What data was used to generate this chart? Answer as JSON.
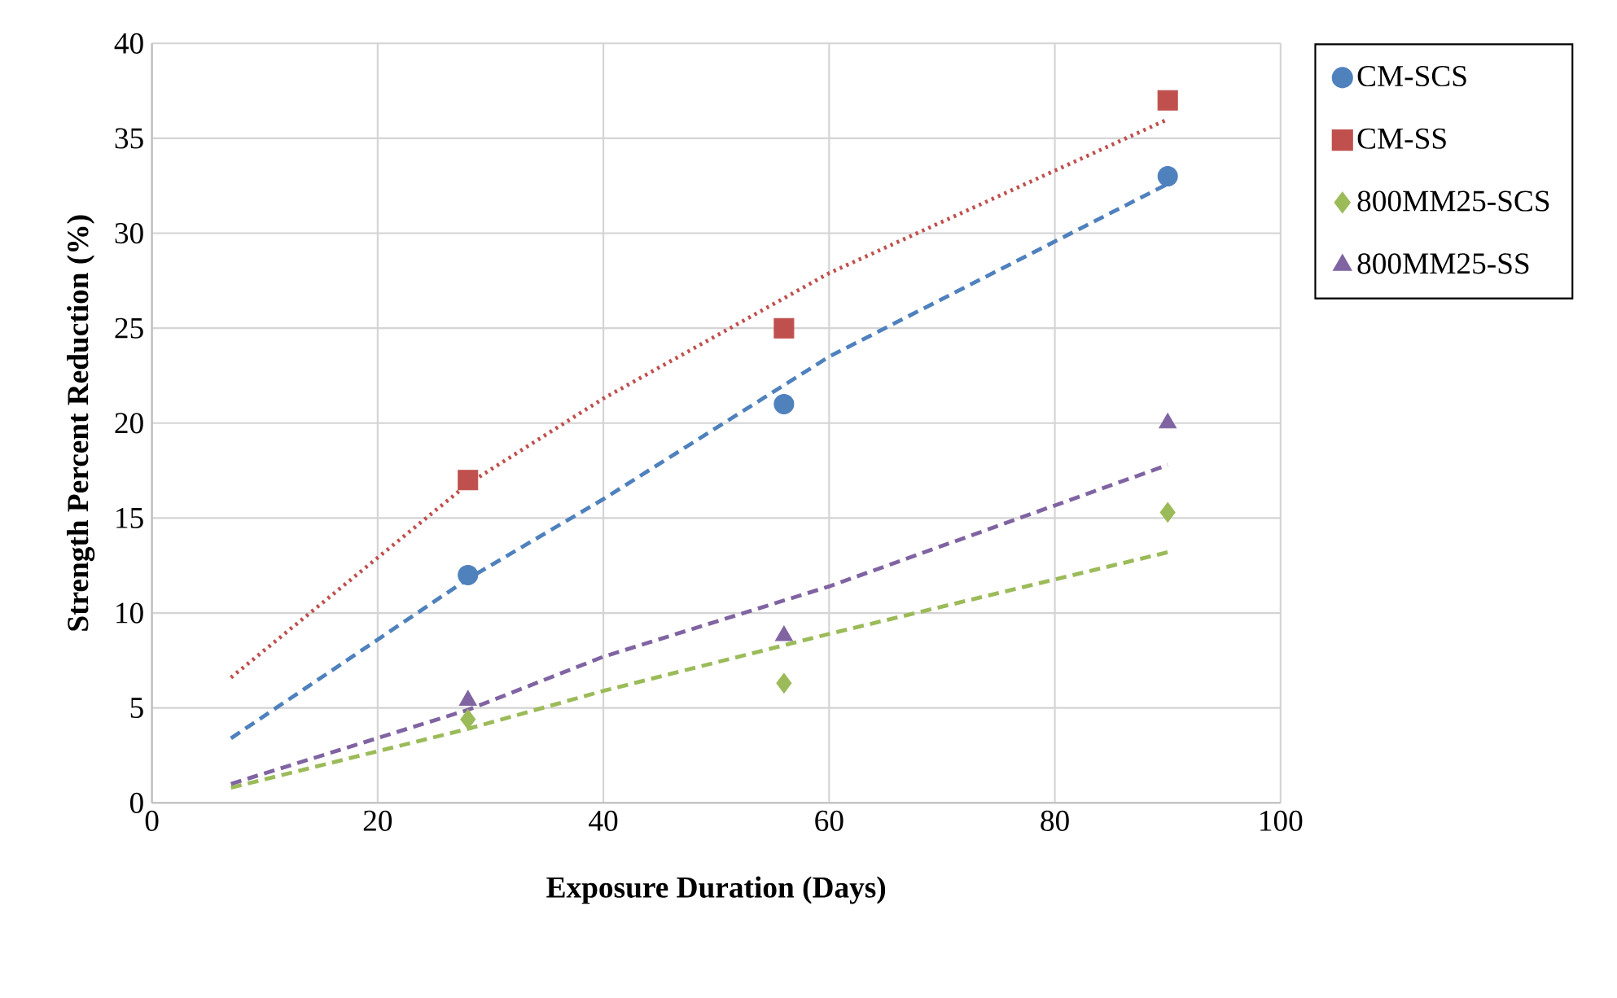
{
  "chart_data": {
    "type": "scatter",
    "xlabel": "Exposure Duration (Days)",
    "ylabel": "Strength Percent Reduction (%)",
    "xlim": [
      0,
      100
    ],
    "xticks": [
      0,
      20,
      40,
      60,
      80,
      100
    ],
    "ylim": [
      0,
      40
    ],
    "yticks": [
      0,
      5,
      10,
      15,
      20,
      25,
      30,
      35,
      40
    ],
    "grid": true,
    "legend": "right",
    "series": [
      {
        "name": "CM-SCS",
        "color": "#4f81bd",
        "marker": "circle",
        "x": [
          28,
          56,
          90
        ],
        "values": [
          12,
          21,
          33
        ]
      },
      {
        "name": "CM-SS",
        "color": "#c0504d",
        "marker": "square",
        "x": [
          28,
          56,
          90
        ],
        "values": [
          17,
          25,
          37
        ]
      },
      {
        "name": "800MM25-SCS",
        "color": "#9bbb59",
        "marker": "diamond",
        "x": [
          28,
          56,
          90
        ],
        "values": [
          4.4,
          6.3,
          15.3
        ]
      },
      {
        "name": "800MM25-SS",
        "color": "#8064a2",
        "marker": "triangle",
        "x": [
          28,
          56,
          90
        ],
        "values": [
          5.4,
          8.8,
          20
        ]
      },
      {
        "type": "line",
        "color": "#4f81bd",
        "line_style": "dashed",
        "x": [
          7,
          28,
          40,
          60,
          90
        ],
        "values": [
          3.4,
          11.8,
          16,
          23.5,
          32.6
        ]
      },
      {
        "type": "line",
        "color": "#c0504d",
        "line_style": "dotted",
        "x": [
          7,
          28,
          40,
          60,
          90
        ],
        "values": [
          6.6,
          16.8,
          21.3,
          27.9,
          36
        ]
      },
      {
        "type": "line",
        "color": "#9bbb59",
        "line_style": "dashed",
        "x": [
          7,
          28,
          40,
          60,
          90
        ],
        "values": [
          0.8,
          3.9,
          5.9,
          8.9,
          13.2
        ]
      },
      {
        "type": "line",
        "color": "#8064a2",
        "line_style": "dashed",
        "x": [
          7,
          28,
          40,
          60,
          90
        ],
        "values": [
          1,
          4.9,
          7.7,
          11.4,
          17.8
        ]
      }
    ]
  }
}
